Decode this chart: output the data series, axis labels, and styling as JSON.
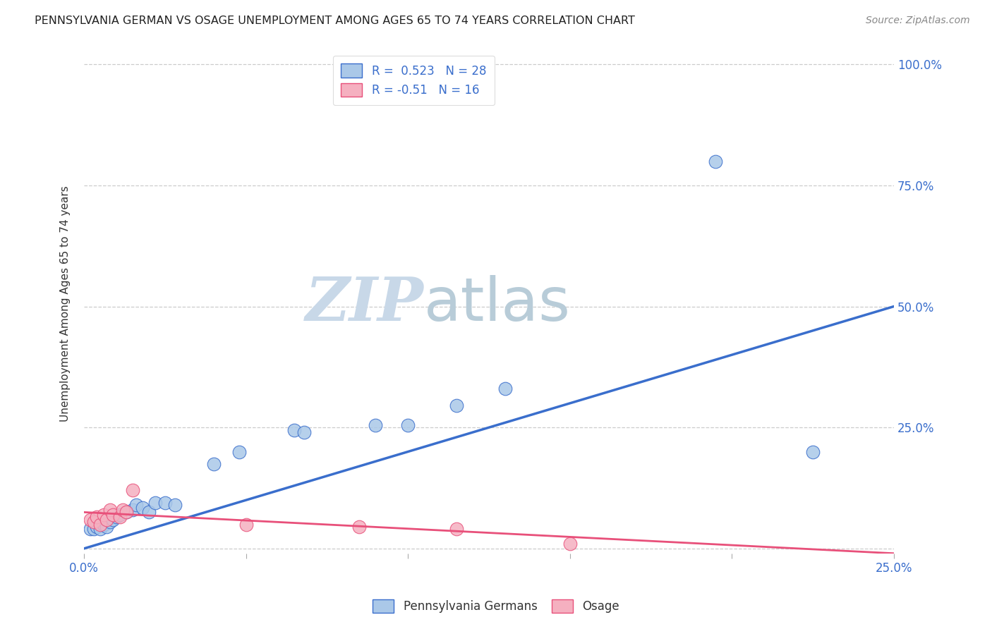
{
  "title": "PENNSYLVANIA GERMAN VS OSAGE UNEMPLOYMENT AMONG AGES 65 TO 74 YEARS CORRELATION CHART",
  "source": "Source: ZipAtlas.com",
  "ylabel": "Unemployment Among Ages 65 to 74 years",
  "xlim": [
    0,
    0.25
  ],
  "ylim": [
    -0.01,
    1.02
  ],
  "xticks": [
    0.0,
    0.05,
    0.1,
    0.15,
    0.2,
    0.25
  ],
  "yticks": [
    0.0,
    0.25,
    0.5,
    0.75,
    1.0
  ],
  "blue_label": "Pennsylvania Germans",
  "pink_label": "Osage",
  "blue_R": 0.523,
  "blue_N": 28,
  "pink_R": -0.51,
  "pink_N": 16,
  "blue_color": "#aac8e8",
  "pink_color": "#f5b0c0",
  "blue_line_color": "#3a6ecc",
  "pink_line_color": "#e8507a",
  "blue_scatter_x": [
    0.002,
    0.003,
    0.004,
    0.005,
    0.006,
    0.007,
    0.008,
    0.009,
    0.01,
    0.011,
    0.013,
    0.015,
    0.016,
    0.018,
    0.02,
    0.022,
    0.025,
    0.028,
    0.04,
    0.048,
    0.065,
    0.068,
    0.09,
    0.1,
    0.115,
    0.13,
    0.195,
    0.225
  ],
  "blue_scatter_y": [
    0.04,
    0.04,
    0.045,
    0.04,
    0.05,
    0.045,
    0.055,
    0.06,
    0.065,
    0.07,
    0.075,
    0.08,
    0.09,
    0.085,
    0.075,
    0.095,
    0.095,
    0.09,
    0.175,
    0.2,
    0.245,
    0.24,
    0.255,
    0.255,
    0.295,
    0.33,
    0.8,
    0.2
  ],
  "pink_scatter_x": [
    0.002,
    0.003,
    0.004,
    0.005,
    0.006,
    0.007,
    0.008,
    0.009,
    0.011,
    0.012,
    0.013,
    0.015,
    0.05,
    0.085,
    0.115,
    0.15
  ],
  "pink_scatter_y": [
    0.06,
    0.055,
    0.065,
    0.05,
    0.07,
    0.06,
    0.08,
    0.07,
    0.065,
    0.08,
    0.075,
    0.12,
    0.05,
    0.045,
    0.04,
    0.01
  ],
  "blue_line_x0": 0.0,
  "blue_line_y0": 0.0,
  "blue_line_x1": 0.25,
  "blue_line_y1": 0.5,
  "pink_line_x0": 0.0,
  "pink_line_y0": 0.075,
  "pink_line_x1": 0.25,
  "pink_line_y1": -0.01,
  "watermark_zip": "ZIP",
  "watermark_atlas": "atlas",
  "watermark_color_zip": "#c8d8e8",
  "watermark_color_atlas": "#b0c8d8",
  "background_color": "#ffffff",
  "grid_color": "#cccccc",
  "title_fontsize": 11.5,
  "axis_label_fontsize": 11,
  "tick_fontsize": 12,
  "legend_fontsize": 12
}
